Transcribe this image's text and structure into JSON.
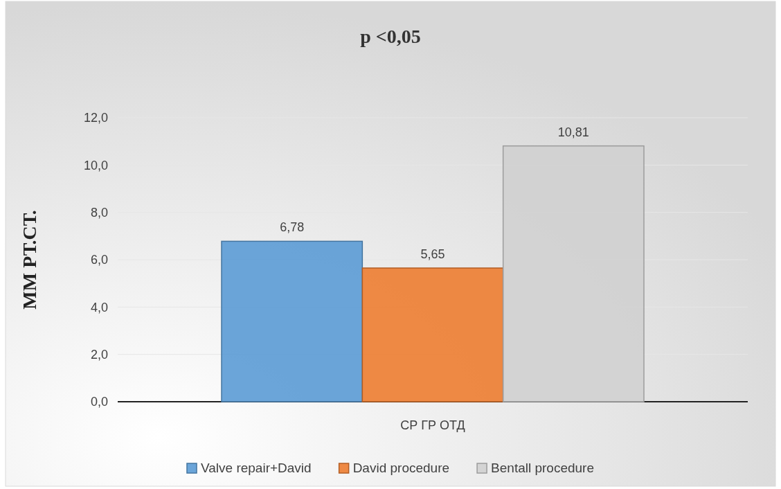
{
  "chart_data": {
    "type": "bar",
    "title": "p <0,05",
    "ylabel": "ММ РТ.СТ.",
    "categories": [
      "СР ГР ОТД"
    ],
    "series": [
      {
        "name": "Valve repair+David",
        "color": "#5b9bd5",
        "values": [
          6.78
        ],
        "value_labels": [
          "6,78"
        ]
      },
      {
        "name": "David procedure",
        "color": "#ed7d31",
        "values": [
          5.65
        ],
        "value_labels": [
          "5,65"
        ]
      },
      {
        "name": "Bentall  procedure",
        "color": "#d0d0d0",
        "values": [
          10.81
        ],
        "value_labels": [
          "10,81"
        ]
      }
    ],
    "ylim": [
      0,
      12
    ],
    "yticks": [
      {
        "value": 0,
        "label": "0,0"
      },
      {
        "value": 2,
        "label": "2,0"
      },
      {
        "value": 4,
        "label": "4,0"
      },
      {
        "value": 6,
        "label": "6,0"
      },
      {
        "value": 8,
        "label": "8,0"
      },
      {
        "value": 10,
        "label": "10,0"
      },
      {
        "value": 12,
        "label": "12,0"
      }
    ],
    "grid": "y",
    "legend": "bottom"
  }
}
